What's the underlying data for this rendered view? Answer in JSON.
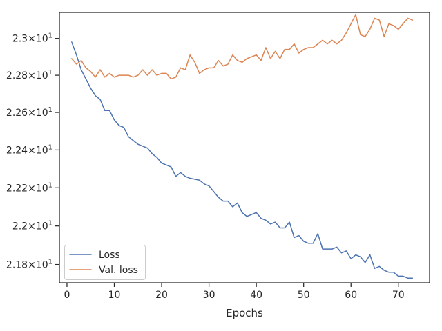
{
  "chart_data": {
    "type": "line",
    "xlabel": "Epochs",
    "ylabel": "",
    "title": "",
    "xlim": [
      -1.6,
      76.6
    ],
    "ylim": [
      21.706,
      23.142
    ],
    "y_scale": "log",
    "xticks": [
      0,
      10,
      20,
      30,
      40,
      50,
      60,
      70
    ],
    "yticks": [
      {
        "value": 21.8,
        "label_base": "2.18",
        "label_exp": "1"
      },
      {
        "value": 22.0,
        "label_base": "2.2",
        "label_exp": "1"
      },
      {
        "value": 22.2,
        "label_base": "2.22",
        "label_exp": "1"
      },
      {
        "value": 22.4,
        "label_base": "2.24",
        "label_exp": "1"
      },
      {
        "value": 22.6,
        "label_base": "2.26",
        "label_exp": "1"
      },
      {
        "value": 22.8,
        "label_base": "2.28",
        "label_exp": "1"
      },
      {
        "value": 23.0,
        "label_base": "2.3",
        "label_exp": "1"
      }
    ],
    "grid": false,
    "legend_position": "lower-left",
    "series": [
      {
        "name": "Loss",
        "color": "#4c72b0",
        "x": [
          1,
          2,
          3,
          4,
          5,
          6,
          7,
          8,
          9,
          10,
          11,
          12,
          13,
          14,
          15,
          16,
          17,
          18,
          19,
          20,
          21,
          22,
          23,
          24,
          25,
          26,
          27,
          28,
          29,
          30,
          31,
          32,
          33,
          34,
          35,
          36,
          37,
          38,
          39,
          40,
          41,
          42,
          43,
          44,
          45,
          46,
          47,
          48,
          49,
          50,
          51,
          52,
          53,
          54,
          55,
          56,
          57,
          58,
          59,
          60,
          61,
          62,
          63,
          64,
          65,
          66,
          67,
          68,
          69,
          70,
          71,
          72,
          73
        ],
        "values": [
          22.98,
          22.91,
          22.83,
          22.78,
          22.73,
          22.69,
          22.67,
          22.61,
          22.61,
          22.56,
          22.53,
          22.52,
          22.47,
          22.45,
          22.43,
          22.42,
          22.41,
          22.38,
          22.36,
          22.33,
          22.32,
          22.31,
          22.26,
          22.28,
          22.26,
          22.25,
          22.245,
          22.24,
          22.22,
          22.21,
          22.18,
          22.15,
          22.13,
          22.13,
          22.1,
          22.12,
          22.07,
          22.05,
          22.06,
          22.07,
          22.04,
          22.03,
          22.01,
          22.02,
          21.99,
          21.99,
          22.02,
          21.94,
          21.95,
          21.92,
          21.91,
          21.91,
          21.96,
          21.88,
          21.88,
          21.88,
          21.89,
          21.86,
          21.87,
          21.83,
          21.85,
          21.84,
          21.81,
          21.85,
          21.78,
          21.79,
          21.77,
          21.76,
          21.76,
          21.74,
          21.74,
          21.73,
          21.73
        ]
      },
      {
        "name": "Val. loss",
        "color": "#dd8452",
        "x": [
          1,
          2,
          3,
          4,
          5,
          6,
          7,
          8,
          9,
          10,
          11,
          12,
          13,
          14,
          15,
          16,
          17,
          18,
          19,
          20,
          21,
          22,
          23,
          24,
          25,
          26,
          27,
          28,
          29,
          30,
          31,
          32,
          33,
          34,
          35,
          36,
          37,
          38,
          39,
          40,
          41,
          42,
          43,
          44,
          45,
          46,
          47,
          48,
          49,
          50,
          51,
          52,
          53,
          54,
          55,
          56,
          57,
          58,
          59,
          60,
          61,
          62,
          63,
          64,
          65,
          66,
          67,
          68,
          69,
          70,
          71,
          72,
          73
        ],
        "values": [
          22.89,
          22.86,
          22.88,
          22.84,
          22.82,
          22.79,
          22.83,
          22.79,
          22.81,
          22.79,
          22.8,
          22.8,
          22.8,
          22.79,
          22.8,
          22.83,
          22.8,
          22.83,
          22.8,
          22.81,
          22.81,
          22.78,
          22.79,
          22.84,
          22.83,
          22.91,
          22.87,
          22.81,
          22.83,
          22.84,
          22.84,
          22.88,
          22.85,
          22.86,
          22.91,
          22.88,
          22.87,
          22.89,
          22.9,
          22.91,
          22.88,
          22.95,
          22.89,
          22.93,
          22.89,
          22.94,
          22.94,
          22.97,
          22.92,
          22.94,
          22.95,
          22.95,
          22.97,
          22.99,
          22.97,
          22.99,
          22.97,
          22.99,
          23.03,
          23.08,
          23.13,
          23.02,
          23.01,
          23.05,
          23.11,
          23.1,
          23.01,
          23.08,
          23.07,
          23.05,
          23.08,
          23.11,
          23.1
        ]
      }
    ]
  }
}
